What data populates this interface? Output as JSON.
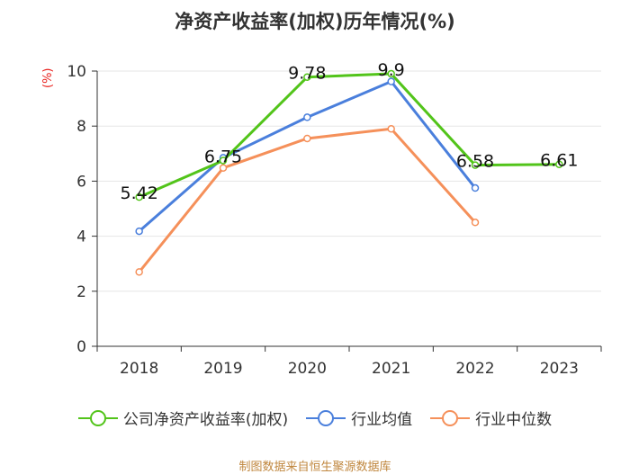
{
  "chart_data": {
    "type": "line",
    "title": "净资产收益率(加权)历年情况(%)",
    "ylabel": "(%)",
    "xlabel": "",
    "categories": [
      "2018",
      "2019",
      "2020",
      "2021",
      "2022",
      "2023"
    ],
    "ylim": [
      0,
      10
    ],
    "yticks": [
      "0",
      "2",
      "4",
      "6",
      "8",
      "10"
    ],
    "grid": true,
    "legend_position": "bottom",
    "series": [
      {
        "name": "公司净资产收益率(加权)",
        "color": "#52c41a",
        "values": [
          5.42,
          6.75,
          9.78,
          9.9,
          6.58,
          6.61
        ],
        "labels": [
          "5.42",
          "6.75",
          "9.78",
          "9.9",
          "6.58",
          "6.61"
        ]
      },
      {
        "name": "行业均值",
        "color": "#4a7fdc",
        "values": [
          4.18,
          6.85,
          8.32,
          9.62,
          5.75,
          null
        ]
      },
      {
        "name": "行业中位数",
        "color": "#f5905a",
        "values": [
          2.7,
          6.48,
          7.55,
          7.9,
          4.5,
          null
        ]
      }
    ],
    "source": "制图数据来自恒生聚源数据库"
  }
}
